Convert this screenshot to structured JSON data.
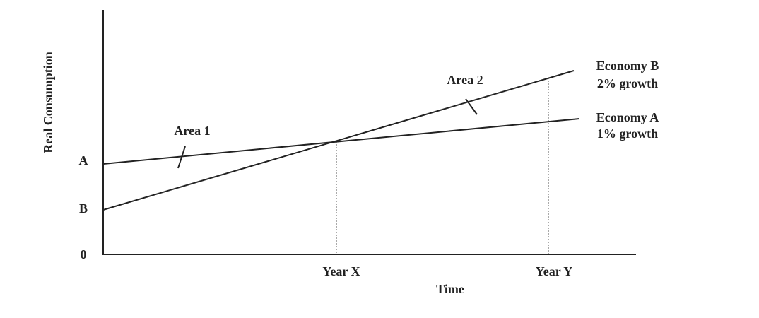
{
  "axes": {
    "y_label": "Real Consumption",
    "x_label": "Time",
    "y_ticks": [
      "0",
      "B",
      "A"
    ],
    "x_ticks": [
      "Year X",
      "Year Y"
    ]
  },
  "lines": [
    {
      "name": "Economy B",
      "growth": "2% growth"
    },
    {
      "name": "Economy A",
      "growth": "1% growth"
    }
  ],
  "areas": [
    "Area 1",
    "Area 2"
  ]
}
